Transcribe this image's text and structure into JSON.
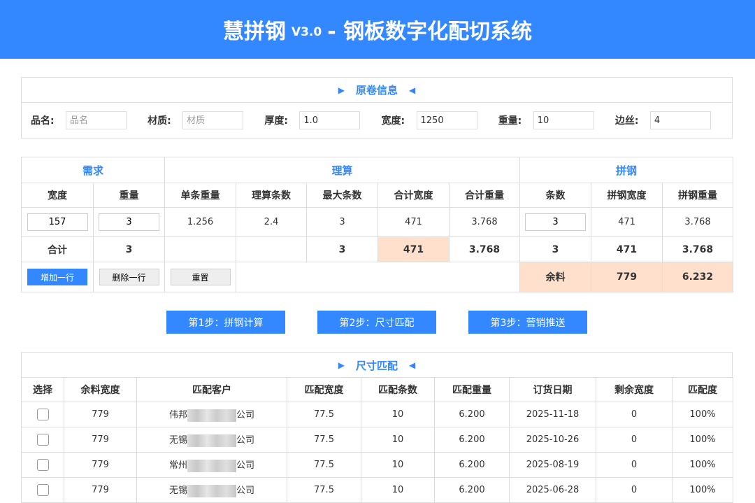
{
  "header": {
    "brand": "慧拼钢",
    "version": "V3.0",
    "subtitle": "- 钢板数字化配切系统"
  },
  "coil": {
    "title": "原卷信息",
    "fields": [
      {
        "label": "品名:",
        "value": "",
        "placeholder": "品名"
      },
      {
        "label": "材质:",
        "value": "",
        "placeholder": "材质"
      },
      {
        "label": "厚度:",
        "value": "1.0",
        "placeholder": ""
      },
      {
        "label": "宽度:",
        "value": "1250",
        "placeholder": ""
      },
      {
        "label": "重量:",
        "value": "10",
        "placeholder": ""
      },
      {
        "label": "边丝:",
        "value": "4",
        "placeholder": ""
      }
    ]
  },
  "calc": {
    "groups": [
      "需求",
      "理算",
      "拼钢"
    ],
    "headers": [
      "宽度",
      "重量",
      "单条重量",
      "理算条数",
      "最大条数",
      "合计宽度",
      "合计重量",
      "条数",
      "拼钢宽度",
      "拼钢重量"
    ],
    "row": {
      "width": "157",
      "weight": "3",
      "unit_weight": "1.256",
      "calc_count": "2.4",
      "max_count": "3",
      "total_width": "471",
      "total_weight": "3.768",
      "count": "3",
      "pin_width": "471",
      "pin_weight": "3.768"
    },
    "total": {
      "label": "合计",
      "weight": "3",
      "max_count": "3",
      "total_width": "471",
      "total_weight": "3.768",
      "count": "3",
      "pin_width": "471",
      "pin_weight": "3.768"
    },
    "buttons": {
      "add": "增加一行",
      "del": "删除一行",
      "reset": "重置"
    },
    "remain": {
      "label": "余料",
      "width": "779",
      "weight": "6.232"
    }
  },
  "steps": [
    "第1步：拼钢计算",
    "第2步：尺寸匹配",
    "第3步：营销推送"
  ],
  "match": {
    "title": "尺寸匹配",
    "headers": [
      "选择",
      "余料宽度",
      "匹配客户",
      "匹配宽度",
      "匹配条数",
      "匹配重量",
      "订货日期",
      "剩余宽度",
      "匹配度"
    ],
    "rows": [
      {
        "remain": "779",
        "cust_pre": "伟邦",
        "cust_suf": "公司",
        "width": "77.5",
        "count": "10",
        "weight": "6.200",
        "date": "2025-11-18",
        "left": "0",
        "rate": "100%"
      },
      {
        "remain": "779",
        "cust_pre": "无锡",
        "cust_suf": "公司",
        "width": "77.5",
        "count": "10",
        "weight": "6.200",
        "date": "2025-10-26",
        "left": "0",
        "rate": "100%"
      },
      {
        "remain": "779",
        "cust_pre": "常州",
        "cust_suf": "公司",
        "width": "77.5",
        "count": "10",
        "weight": "6.200",
        "date": "2025-08-19",
        "left": "0",
        "rate": "100%"
      },
      {
        "remain": "779",
        "cust_pre": "无锡",
        "cust_suf": "公司",
        "width": "77.5",
        "count": "10",
        "weight": "6.200",
        "date": "2025-06-28",
        "left": "0",
        "rate": "100%"
      }
    ]
  }
}
